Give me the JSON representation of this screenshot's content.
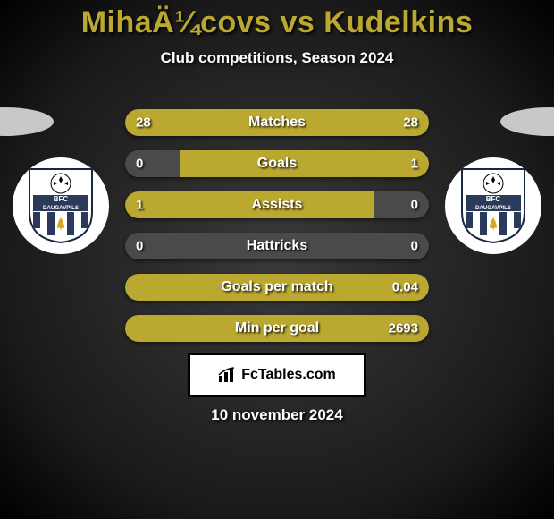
{
  "header": {
    "title": "MihaÄ¼covs vs Kudelkins",
    "subtitle": "Club competitions, Season 2024"
  },
  "crest": {
    "top_text": "BFC",
    "bottom_text": "DAUGAVPILS",
    "banner_bg": "#2a3a5a",
    "shield_border": "#1a2840",
    "shield_fill": "#ffffff",
    "fleur_color": "#d4a820"
  },
  "accent_color": "#bba831",
  "track_color": "#4a4a4a",
  "stats": [
    {
      "label": "Matches",
      "left_val": "28",
      "right_val": "28",
      "left_pct": 50,
      "right_pct": 50
    },
    {
      "label": "Goals",
      "left_val": "0",
      "right_val": "1",
      "left_pct": 0,
      "right_pct": 82
    },
    {
      "label": "Assists",
      "left_val": "1",
      "right_val": "0",
      "left_pct": 82,
      "right_pct": 0
    },
    {
      "label": "Hattricks",
      "left_val": "0",
      "right_val": "0",
      "left_pct": 0,
      "right_pct": 0
    },
    {
      "label": "Goals per match",
      "left_val": "",
      "right_val": "0.04",
      "left_pct": 0,
      "right_pct": 100
    },
    {
      "label": "Min per goal",
      "left_val": "",
      "right_val": "2693",
      "left_pct": 0,
      "right_pct": 100
    }
  ],
  "footer": {
    "site": "FcTables.com",
    "date": "10 november 2024"
  }
}
